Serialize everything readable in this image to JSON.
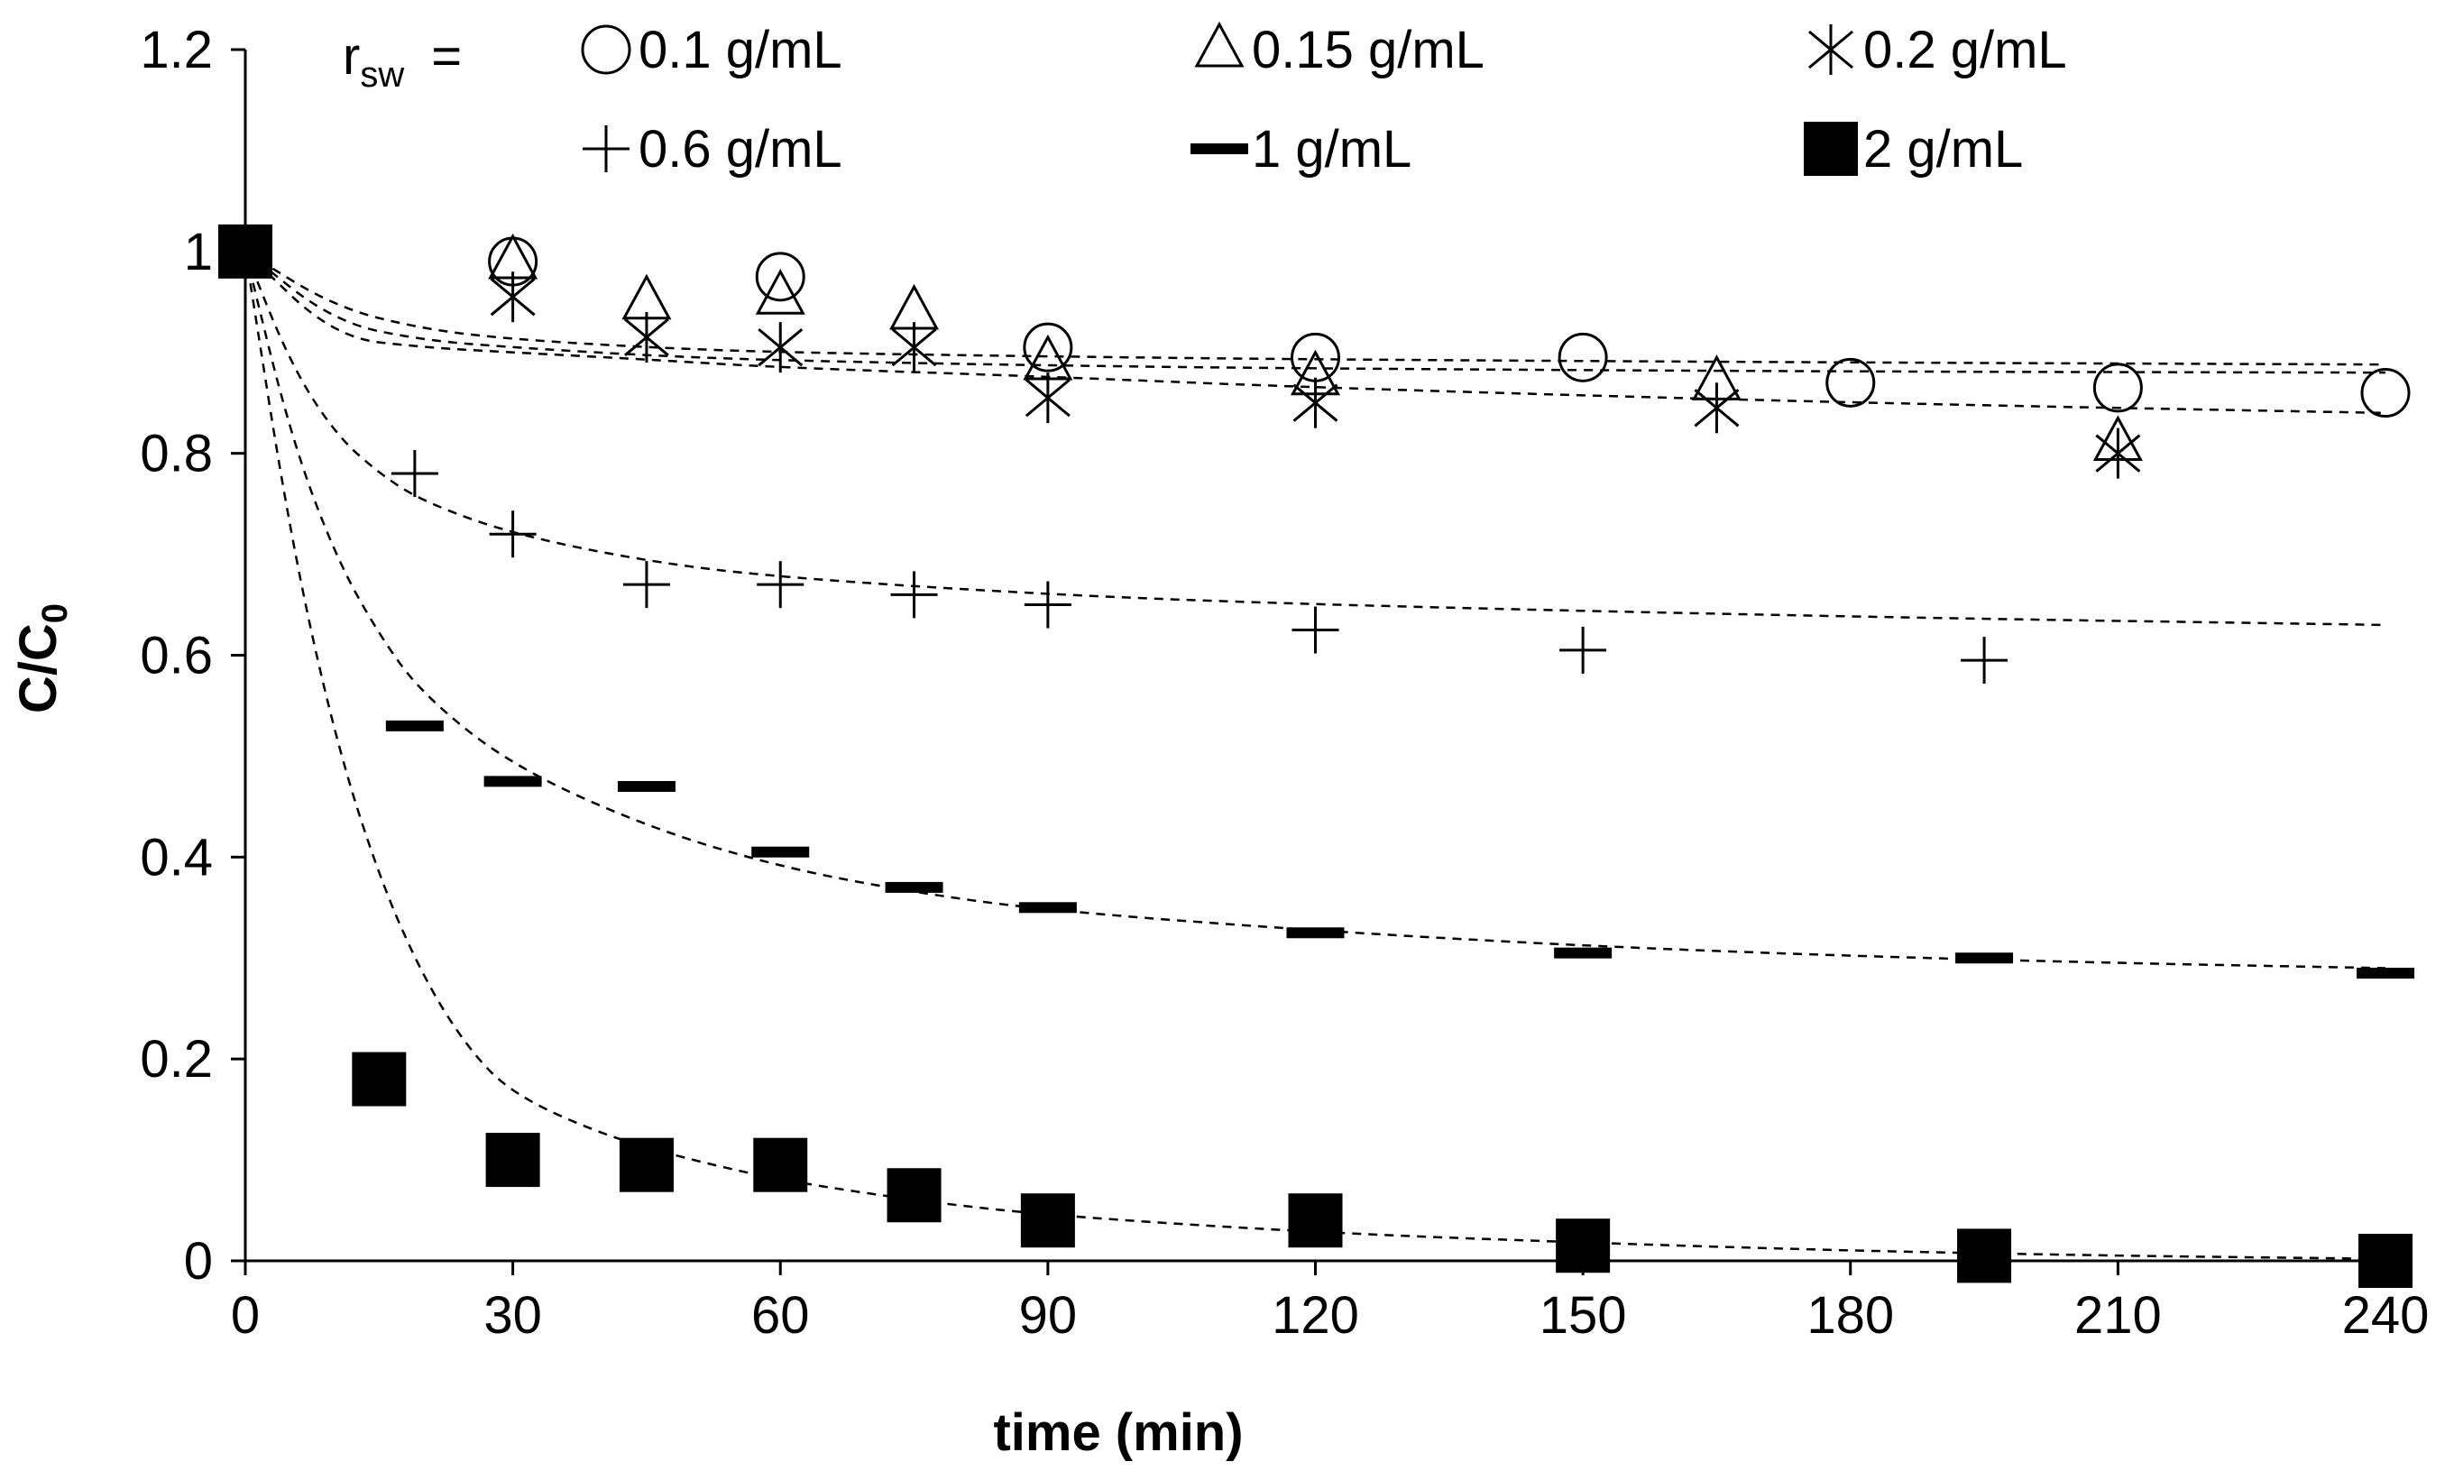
{
  "chart_data": {
    "type": "scatter",
    "xlabel": "time (min)",
    "ylabel_main": "C/C",
    "ylabel_sub": "0",
    "legend_title_main": "r",
    "legend_title_sub": "sw",
    "legend_title_eq": "=",
    "xlim": [
      0,
      240
    ],
    "ylim": [
      0,
      1.2
    ],
    "xticks": [
      0,
      30,
      60,
      90,
      120,
      150,
      180,
      210,
      240
    ],
    "yticks": [
      0,
      0.2,
      0.4,
      0.6,
      0.8,
      1,
      1.2
    ],
    "ytick_labels": [
      "0",
      "0.2",
      "0.4",
      "0.6",
      "0.8",
      "1",
      "1.2"
    ],
    "legend_placement": "top",
    "series": [
      {
        "name": "0.1 g/mL",
        "marker": "circle",
        "points": [
          [
            30,
            0.99
          ],
          [
            60,
            0.975
          ],
          [
            90,
            0.905
          ],
          [
            120,
            0.895
          ],
          [
            150,
            0.895
          ],
          [
            180,
            0.87
          ],
          [
            210,
            0.865
          ],
          [
            240,
            0.86
          ]
        ]
      },
      {
        "name": "0.15 g/mL",
        "marker": "triangle",
        "points": [
          [
            30,
            0.99
          ],
          [
            45,
            0.95
          ],
          [
            60,
            0.955
          ],
          [
            75,
            0.94
          ],
          [
            90,
            0.89
          ],
          [
            120,
            0.875
          ],
          [
            165,
            0.87
          ],
          [
            210,
            0.81
          ]
        ]
      },
      {
        "name": "0.2 g/mL",
        "marker": "asterisk",
        "points": [
          [
            30,
            0.955
          ],
          [
            45,
            0.915
          ],
          [
            60,
            0.905
          ],
          [
            75,
            0.905
          ],
          [
            90,
            0.855
          ],
          [
            120,
            0.85
          ],
          [
            165,
            0.845
          ],
          [
            210,
            0.8
          ]
        ]
      },
      {
        "name": "0.6 g/mL",
        "marker": "plus",
        "points": [
          [
            19,
            0.78
          ],
          [
            30,
            0.72
          ],
          [
            45,
            0.67
          ],
          [
            60,
            0.67
          ],
          [
            75,
            0.66
          ],
          [
            90,
            0.65
          ],
          [
            120,
            0.625
          ],
          [
            150,
            0.605
          ],
          [
            195,
            0.595
          ]
        ]
      },
      {
        "name": "1 g/mL",
        "marker": "dash",
        "points": [
          [
            19,
            0.53
          ],
          [
            30,
            0.475
          ],
          [
            45,
            0.47
          ],
          [
            60,
            0.405
          ],
          [
            75,
            0.37
          ],
          [
            90,
            0.35
          ],
          [
            120,
            0.325
          ],
          [
            150,
            0.305
          ],
          [
            195,
            0.3
          ],
          [
            240,
            0.285
          ]
        ]
      },
      {
        "name": "2 g/mL",
        "marker": "square",
        "points": [
          [
            0,
            1.0
          ],
          [
            15,
            0.18
          ],
          [
            30,
            0.1
          ],
          [
            45,
            0.095
          ],
          [
            60,
            0.095
          ],
          [
            75,
            0.065
          ],
          [
            90,
            0.04
          ],
          [
            120,
            0.04
          ],
          [
            150,
            0.015
          ],
          [
            195,
            0.005
          ],
          [
            240,
            0.0
          ]
        ]
      }
    ],
    "fit_curves": [
      {
        "points": [
          [
            0,
            1.0
          ],
          [
            10,
            0.945
          ],
          [
            20,
            0.923
          ],
          [
            30,
            0.913
          ],
          [
            45,
            0.905
          ],
          [
            60,
            0.9
          ],
          [
            90,
            0.896
          ],
          [
            120,
            0.893
          ],
          [
            180,
            0.89
          ],
          [
            240,
            0.888
          ]
        ]
      },
      {
        "points": [
          [
            0,
            1.0
          ],
          [
            10,
            0.93
          ],
          [
            20,
            0.912
          ],
          [
            30,
            0.905
          ],
          [
            45,
            0.897
          ],
          [
            60,
            0.892
          ],
          [
            90,
            0.887
          ],
          [
            120,
            0.884
          ],
          [
            180,
            0.881
          ],
          [
            240,
            0.88
          ]
        ]
      },
      {
        "points": [
          [
            0,
            1.0
          ],
          [
            10,
            0.915
          ],
          [
            20,
            0.905
          ],
          [
            30,
            0.9
          ],
          [
            45,
            0.893
          ],
          [
            60,
            0.885
          ],
          [
            90,
            0.876
          ],
          [
            120,
            0.865
          ],
          [
            180,
            0.85
          ],
          [
            240,
            0.84
          ]
        ]
      },
      {
        "points": [
          [
            0,
            1.0
          ],
          [
            5,
            0.89
          ],
          [
            10,
            0.82
          ],
          [
            15,
            0.78
          ],
          [
            20,
            0.752
          ],
          [
            30,
            0.72
          ],
          [
            45,
            0.693
          ],
          [
            60,
            0.677
          ],
          [
            90,
            0.66
          ],
          [
            120,
            0.65
          ],
          [
            180,
            0.638
          ],
          [
            240,
            0.63
          ]
        ]
      },
      {
        "points": [
          [
            0,
            1.0
          ],
          [
            5,
            0.82
          ],
          [
            10,
            0.7
          ],
          [
            15,
            0.62
          ],
          [
            20,
            0.56
          ],
          [
            30,
            0.49
          ],
          [
            45,
            0.43
          ],
          [
            60,
            0.39
          ],
          [
            75,
            0.365
          ],
          [
            90,
            0.347
          ],
          [
            120,
            0.327
          ],
          [
            150,
            0.312
          ],
          [
            180,
            0.302
          ],
          [
            210,
            0.295
          ],
          [
            240,
            0.29
          ]
        ]
      },
      {
        "points": [
          [
            0,
            1.0
          ],
          [
            5,
            0.72
          ],
          [
            10,
            0.52
          ],
          [
            15,
            0.38
          ],
          [
            20,
            0.28
          ],
          [
            25,
            0.21
          ],
          [
            30,
            0.165
          ],
          [
            40,
            0.125
          ],
          [
            50,
            0.1
          ],
          [
            60,
            0.08
          ],
          [
            75,
            0.06
          ],
          [
            90,
            0.045
          ],
          [
            120,
            0.028
          ],
          [
            150,
            0.018
          ],
          [
            180,
            0.01
          ],
          [
            210,
            0.005
          ],
          [
            240,
            0.002
          ]
        ]
      }
    ]
  }
}
